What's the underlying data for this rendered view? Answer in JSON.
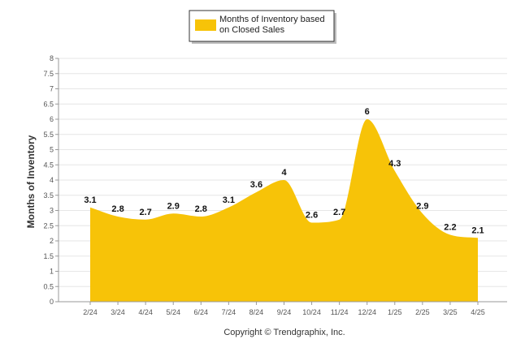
{
  "chart_data": {
    "type": "area",
    "categories": [
      "2/24",
      "3/24",
      "4/24",
      "5/24",
      "6/24",
      "7/24",
      "8/24",
      "9/24",
      "10/24",
      "11/24",
      "12/24",
      "1/25",
      "2/25",
      "3/25",
      "4/25"
    ],
    "series": [
      {
        "name_lines": [
          "Months of Inventory based",
          "on Closed Sales"
        ],
        "values": [
          3.1,
          2.8,
          2.7,
          2.9,
          2.8,
          3.1,
          3.6,
          4,
          2.6,
          2.7,
          6,
          4.3,
          2.9,
          2.2,
          2.1
        ],
        "labels": [
          "3.1",
          "2.8",
          "2.7",
          "2.9",
          "2.8",
          "3.1",
          "3.6",
          "4",
          "2.6",
          "2.7",
          "6",
          "4.3",
          "2.9",
          "2.2",
          "2.1"
        ],
        "color": "#F7C308"
      }
    ],
    "ylabel": "Months of Inventory",
    "ylim": [
      0,
      8
    ],
    "yticks": [
      "0",
      "0.5",
      "1",
      "1.5",
      "2",
      "2.5",
      "3",
      "3.5",
      "4",
      "4.5",
      "5",
      "5.5",
      "6",
      "6.5",
      "7",
      "7.5",
      "8"
    ],
    "grid": true,
    "legend_position": "top-center"
  },
  "footer": {
    "copyright": "Copyright © Trendgraphix, Inc."
  }
}
